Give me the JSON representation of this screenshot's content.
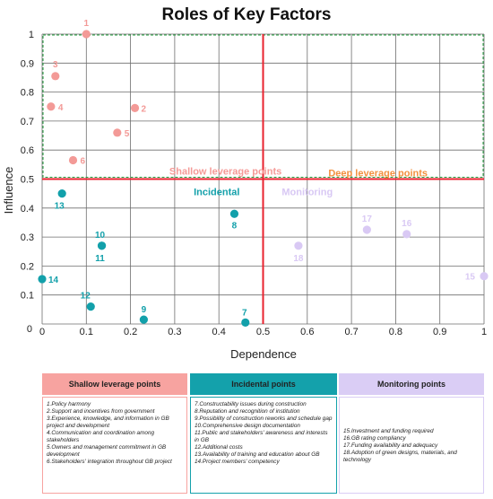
{
  "chart_data": {
    "type": "scatter",
    "title": "Roles of Key Factors",
    "xlabel": "Dependence",
    "ylabel": "Influence",
    "xlim": [
      0,
      1
    ],
    "ylim": [
      0,
      1
    ],
    "xticks": [
      "0",
      "0.1",
      "0.2",
      "0.3",
      "0.4",
      "0.5",
      "0.6",
      "0.7",
      "0.8",
      "0.9",
      "1"
    ],
    "yticks": [
      "0",
      "0.1",
      "0.2",
      "0.3",
      "0.4",
      "0.5",
      "0.6",
      "0.7",
      "0.8",
      "0.9",
      "1"
    ],
    "grid": true,
    "divider": {
      "x": 0.5,
      "y": 0.5,
      "color": "#e8232f"
    },
    "region_labels": [
      {
        "text": "Shallow leverage points",
        "color": "#f59a97"
      },
      {
        "text": "Deep leverage points",
        "color": "#f2903e"
      },
      {
        "text": "Incidental",
        "color": "#13a0aa"
      },
      {
        "text": "Monitoring",
        "color": "#d8c8f4"
      }
    ],
    "series": [
      {
        "name": "Shallow leverage points",
        "color": "#f39a97",
        "points": [
          {
            "id": "1",
            "x": 0.1,
            "y": 1.0
          },
          {
            "id": "2",
            "x": 0.21,
            "y": 0.745
          },
          {
            "id": "3",
            "x": 0.03,
            "y": 0.855
          },
          {
            "id": "4",
            "x": 0.02,
            "y": 0.75
          },
          {
            "id": "5",
            "x": 0.17,
            "y": 0.66
          },
          {
            "id": "6",
            "x": 0.07,
            "y": 0.565
          }
        ]
      },
      {
        "name": "Incidental points",
        "color": "#12a0aa",
        "points": [
          {
            "id": "7",
            "x": 0.46,
            "y": 0.005
          },
          {
            "id": "8",
            "x": 0.435,
            "y": 0.38
          },
          {
            "id": "9",
            "x": 0.23,
            "y": 0.015
          },
          {
            "id": "10",
            "x": 0.135,
            "y": 0.27
          },
          {
            "id": "11",
            "x": 0.135,
            "y": 0.27
          },
          {
            "id": "12",
            "x": 0.11,
            "y": 0.06
          },
          {
            "id": "13",
            "x": 0.045,
            "y": 0.45
          },
          {
            "id": "14",
            "x": 0.0,
            "y": 0.155
          }
        ]
      },
      {
        "name": "Monitoring points",
        "color": "#d9c9f4",
        "points": [
          {
            "id": "15",
            "x": 1.0,
            "y": 0.165
          },
          {
            "id": "16",
            "x": 0.825,
            "y": 0.31
          },
          {
            "id": "17",
            "x": 0.735,
            "y": 0.325
          },
          {
            "id": "18",
            "x": 0.58,
            "y": 0.27
          }
        ]
      }
    ]
  },
  "legend": [
    {
      "heading": "Shallow leverage points",
      "head_bg": "#f7a3a0",
      "border": "#f7a3a0",
      "items": [
        "1.Policy harmony",
        "2.Support and incentives from government",
        "3.Experience, knowledge, and information in GB project and development",
        "4.Communication and coordination among stakeholders",
        "5.Owners and management commitment in GB development",
        "6.Stakeholders' integration throughout GB project"
      ]
    },
    {
      "heading": "Incidental points",
      "head_bg": "#14a1ab",
      "border": "#14a1ab",
      "items": [
        "7.Constructability issues during construction",
        "8.Reputation and recognition of institution",
        "9.Possibility of construction reworks and schedule gap",
        "10.Comprehensive design documentation",
        "11.Public and stakeholders' awareness and interests in GB",
        "12.Additional costs",
        "13.Availability of training and education about GB",
        "14.Project members' competency"
      ]
    },
    {
      "heading": "Monitoring points",
      "head_bg": "#dacdf5",
      "border": "#dacdf5",
      "items": [
        "15.Investment and funding required",
        "16.GB rating compliancy",
        "17.Funding availability and adequacy",
        "18.Adoption of green designs, materials, and technology"
      ]
    }
  ]
}
